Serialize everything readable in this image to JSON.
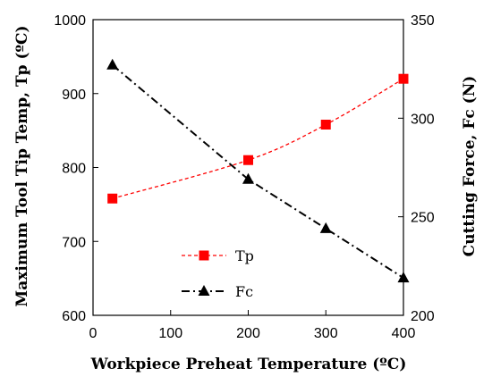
{
  "chart_data": {
    "type": "line",
    "x": [
      25,
      200,
      300,
      400
    ],
    "xlabel": "Workpiece Preheat Temperature (ºC)",
    "xlim": [
      0,
      400
    ],
    "xticks": [
      0,
      100,
      200,
      300,
      400
    ],
    "ylabel": "Maximum Tool Tip Temp, Tp (ºC)",
    "ylim": [
      600,
      1000
    ],
    "yticks": [
      600,
      700,
      800,
      900,
      1000
    ],
    "y2label": "Cutting Force, Fc (N)",
    "y2lim": [
      200,
      350
    ],
    "y2ticks": [
      200,
      250,
      300,
      350
    ],
    "grid": false,
    "legend_position": "bottom-center",
    "series": [
      {
        "name": "Tp",
        "axis": "left",
        "values": [
          758,
          810,
          858,
          920
        ],
        "color": "#ff0000",
        "marker": "square",
        "line_style": "dashed",
        "line_kind": "curve"
      },
      {
        "name": "Fc",
        "axis": "right",
        "values": [
          327,
          269,
          244,
          219
        ],
        "color": "#000000",
        "marker": "triangle",
        "line_style": "dash-dot",
        "line_kind": "straight"
      }
    ]
  }
}
